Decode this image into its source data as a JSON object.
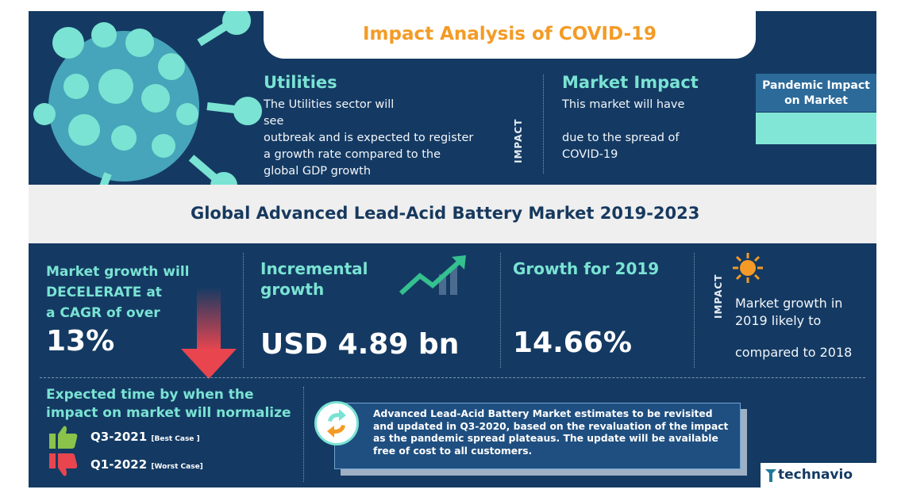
{
  "header": {
    "title": "Impact Analysis of COVID-19"
  },
  "utilities": {
    "heading": "Utilities",
    "lines": [
      "The Utilities sector will",
      "see",
      "outbreak and is expected to register",
      "a growth rate compared to the",
      "global GDP growth"
    ]
  },
  "impact_label": "IMPACT",
  "market_impact": {
    "heading": "Market Impact",
    "line1": "This market will have",
    "line2": "due to the spread of",
    "line3": "COVID-19"
  },
  "pandemic_box": {
    "label_line1": "Pandemic Impact",
    "label_line2": "on Market"
  },
  "band_title": "Global Advanced Lead-Acid Battery Market 2019-2023",
  "stats": {
    "growth": {
      "line1": "Market growth will",
      "line2": "DECELERATE at",
      "line3": "a CAGR of over",
      "value": "13%"
    },
    "incremental": {
      "line1": "Incremental",
      "line2": "growth",
      "value": "USD 4.89 bn"
    },
    "growth2019": {
      "heading": "Growth for 2019",
      "value": "14.66%"
    },
    "impact2019": {
      "label": "IMPACT",
      "line1": "Market growth in",
      "line2": "2019 likely to",
      "line3": "compared to 2018"
    }
  },
  "normalize": {
    "line1": "Expected time by when the",
    "line2": "impact on market will normalize",
    "best": {
      "quarter": "Q3-2021",
      "tag": "[Best Case ]"
    },
    "worst": {
      "quarter": "Q1-2022",
      "tag": "[Worst Case]"
    }
  },
  "note": "Advanced Lead-Acid Battery Market estimates to be revisited and updated in Q3-2020, based on the revaluation of the impact as the pandemic spread plateaus. The update will be available free of cost to all customers.",
  "brand": {
    "name": "technavio"
  },
  "icons": [
    "virus-icon",
    "trend-up-icon",
    "down-arrow-icon",
    "sun-icon",
    "thumbs-up-icon",
    "thumbs-down-icon",
    "refresh-icon",
    "technavio-logo-icon"
  ],
  "colors": {
    "background": "#143a63",
    "accent_orange": "#f39b26",
    "teal": "#7ae3d3",
    "band": "#efefef",
    "red_arrow": "#e8454f",
    "green_thumb": "#8bc34a"
  }
}
